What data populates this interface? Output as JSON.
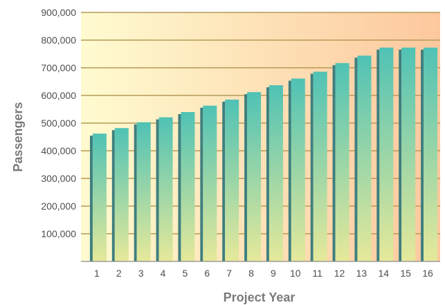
{
  "chart_data": {
    "type": "bar",
    "title": "",
    "xlabel": "Project Year",
    "ylabel": "Passengers",
    "ylim": [
      0,
      900000
    ],
    "yticks": [
      100000,
      200000,
      300000,
      400000,
      500000,
      600000,
      700000,
      800000,
      900000
    ],
    "ytick_labels": [
      "100,000",
      "200,000",
      "300,000",
      "400,000",
      "500,000",
      "600,000",
      "700,000",
      "800,000",
      "900,000"
    ],
    "categories": [
      "1",
      "2",
      "3",
      "4",
      "5",
      "6",
      "7",
      "8",
      "9",
      "10",
      "11",
      "12",
      "13",
      "14",
      "15",
      "16"
    ],
    "values": [
      462000,
      482000,
      503000,
      521000,
      540000,
      563000,
      585000,
      612000,
      637000,
      661000,
      686000,
      717000,
      744000,
      773000,
      773000,
      773000
    ],
    "grid": true,
    "legend": "none",
    "colors": {
      "bar_top": "#4fc2b5",
      "bar_bottom": "#e6e99a",
      "bar_side": "#3f7f7f",
      "bg_left": "#fffbd0",
      "bg_right": "#fdc89e",
      "grid": "#b49a57",
      "axis": "#8c8c8c"
    }
  }
}
